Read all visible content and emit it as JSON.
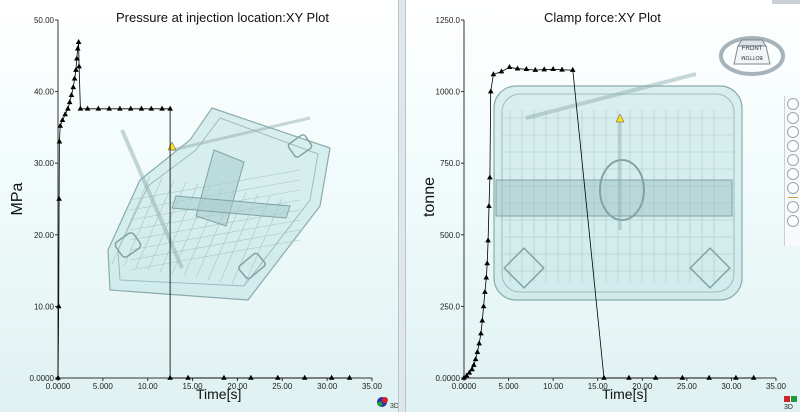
{
  "chart_data": [
    {
      "type": "line",
      "title": "Pressure at injection location:XY Plot",
      "xlabel": "Time[s]",
      "ylabel": "MPa",
      "xlim": [
        0,
        35
      ],
      "ylim": [
        0,
        50
      ],
      "x_ticks": [
        "0.0000",
        "5.000",
        "10.00",
        "15.00",
        "20.00",
        "25.00",
        "30.00",
        "35.00"
      ],
      "y_ticks": [
        "0.0000",
        "10.00",
        "20.00",
        "30.00",
        "40.00",
        "50.00"
      ],
      "series": [
        {
          "marker": "triangle",
          "x": [
            0.0,
            0.08,
            0.12,
            0.16,
            0.25,
            0.5,
            0.8,
            1.1,
            1.3,
            1.5,
            1.7,
            1.85,
            2.0,
            2.1,
            2.2,
            2.3,
            2.35,
            2.5,
            3.3,
            4.5,
            5.7,
            6.9,
            8.1,
            9.3,
            10.4,
            11.6,
            12.5,
            12.5,
            14.5,
            18.5,
            21.5,
            24.5,
            27.5,
            30.5,
            32.5
          ],
          "y": [
            0.0,
            10.0,
            25.0,
            33.0,
            35.2,
            36.0,
            36.8,
            37.6,
            38.5,
            39.5,
            40.6,
            41.8,
            43.0,
            44.6,
            46.0,
            46.9,
            43.5,
            37.6,
            37.6,
            37.6,
            37.6,
            37.6,
            37.6,
            37.6,
            37.6,
            37.6,
            37.6,
            0.0,
            0.0,
            0.0,
            0.0,
            0.0,
            0.0,
            0.0,
            0.0
          ]
        }
      ]
    },
    {
      "type": "line",
      "title": "Clamp force:XY Plot",
      "xlabel": "Time[s]",
      "ylabel": "tonne",
      "xlim": [
        0,
        35
      ],
      "ylim": [
        0,
        1250
      ],
      "x_ticks": [
        "0.0000",
        "5.000",
        "10.00",
        "15.00",
        "20.00",
        "25.00",
        "30.00",
        "35.00"
      ],
      "y_ticks": [
        "0.0000",
        "250.0",
        "500.0",
        "750.0",
        "1000.0",
        "1250.0"
      ],
      "series": [
        {
          "marker": "triangle",
          "x": [
            0.0,
            0.3,
            0.6,
            0.9,
            1.1,
            1.3,
            1.5,
            1.7,
            1.9,
            2.05,
            2.2,
            2.35,
            2.5,
            2.6,
            2.7,
            2.8,
            2.9,
            3.0,
            3.3,
            4.2,
            5.1,
            6.0,
            7.0,
            8.0,
            9.0,
            10.0,
            11.0,
            12.2,
            15.7,
            18.5,
            21.5,
            24.5,
            27.5,
            30.5,
            32.5
          ],
          "y": [
            0.0,
            8,
            18,
            30,
            45,
            65,
            90,
            120,
            155,
            200,
            250,
            300,
            350,
            400,
            480,
            600,
            700,
            1000,
            1060,
            1070,
            1085,
            1080,
            1078,
            1075,
            1077,
            1078,
            1076,
            1075,
            0.0,
            0.0,
            0.0,
            0.0,
            0.0,
            0.0,
            0.0
          ]
        }
      ]
    }
  ],
  "viewcube": {
    "face_labels": [
      "FRONT",
      "BOTTOM"
    ]
  },
  "triad_labels": [
    "3D",
    "3D"
  ],
  "toolbar": {
    "icons": [
      "rotate-icon",
      "pan-icon",
      "hand-icon",
      "zoom-icon",
      "zoom-box-icon",
      "fit-icon",
      "center-icon",
      "select-icon",
      "settings-icon"
    ]
  },
  "colors": {
    "background": "#eef8f8",
    "part_fill": "#b6dede",
    "part_edge": "#7a9ea0",
    "curve": "#000000",
    "marker_highlight": "#ffd800"
  }
}
